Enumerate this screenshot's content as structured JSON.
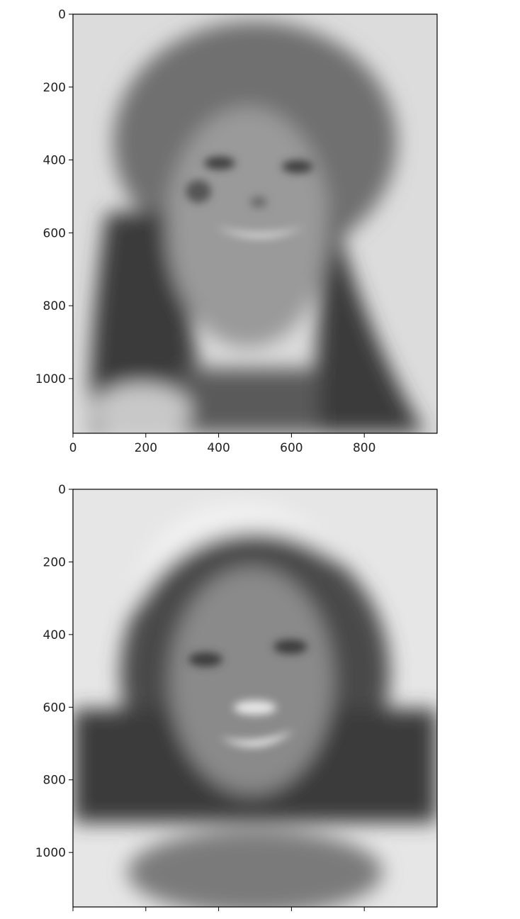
{
  "chart_data": [
    {
      "type": "heatmap",
      "title": "",
      "xlabel": "",
      "ylabel": "",
      "xlim": [
        0,
        1000
      ],
      "ylim": [
        1150,
        0
      ],
      "grid": false,
      "colormap": "gray",
      "x_ticks": [
        0,
        200,
        400,
        600,
        800
      ],
      "x_tick_labels": [
        "0",
        "200",
        "400",
        "600",
        "800"
      ],
      "y_ticks": [
        0,
        200,
        400,
        600,
        800,
        1000
      ],
      "y_tick_labels": [
        "0",
        "200",
        "400",
        "600",
        "800",
        "1000"
      ]
    },
    {
      "type": "heatmap",
      "title": "",
      "xlabel": "",
      "ylabel": "",
      "xlim": [
        0,
        1000
      ],
      "ylim": [
        1150,
        0
      ],
      "grid": false,
      "colormap": "gray",
      "x_ticks": [
        0,
        200,
        400,
        600,
        800
      ],
      "x_tick_labels": [],
      "y_ticks": [
        0,
        200,
        400,
        600,
        800,
        1000
      ],
      "y_tick_labels": [
        "0",
        "200",
        "400",
        "600",
        "800",
        "1000"
      ]
    }
  ]
}
